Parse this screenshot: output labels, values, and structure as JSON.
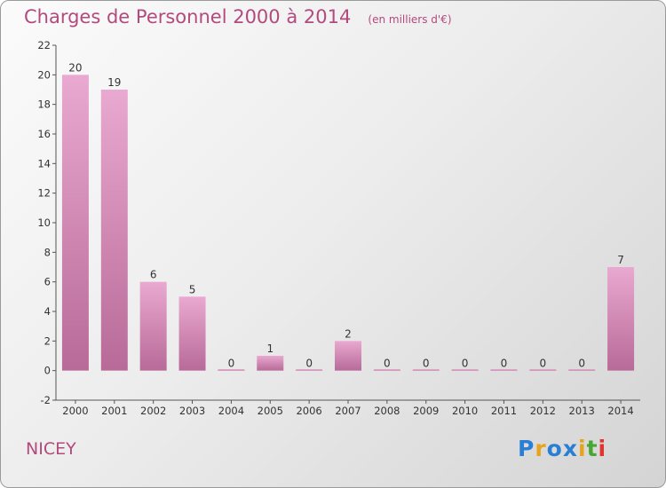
{
  "header": {
    "title": "Charges de Personnel 2000 à 2014",
    "subtitle": "(en milliers d'€)"
  },
  "footer": {
    "commune": "NICEY",
    "logo": {
      "text": "Proxiti",
      "colors": [
        "#2a7fd4",
        "#e8a31c",
        "#2a7fd4",
        "#2a7fd4",
        "#e8a31c",
        "#46a832",
        "#e0342c"
      ]
    }
  },
  "chart_data": {
    "type": "bar",
    "categories": [
      "2000",
      "2001",
      "2002",
      "2003",
      "2004",
      "2005",
      "2006",
      "2007",
      "2008",
      "2009",
      "2010",
      "2011",
      "2012",
      "2013",
      "2014"
    ],
    "values": [
      20,
      19,
      6,
      5,
      0,
      1,
      0,
      2,
      0,
      0,
      0,
      0,
      0,
      0,
      7
    ],
    "data_labels": [
      "20",
      "19",
      "6",
      "5",
      "0",
      "1",
      "0",
      "2",
      "0",
      "0",
      "0",
      "0",
      "0",
      "0",
      "7"
    ],
    "ylim": [
      -2,
      22
    ],
    "yticks": [
      -2,
      0,
      2,
      4,
      6,
      8,
      10,
      12,
      14,
      16,
      18,
      20,
      22
    ],
    "grid": false,
    "colors": {
      "bar_light": "#e9a9d0",
      "bar_dark": "#b86a98",
      "text_accent": "#b34a7e"
    }
  }
}
